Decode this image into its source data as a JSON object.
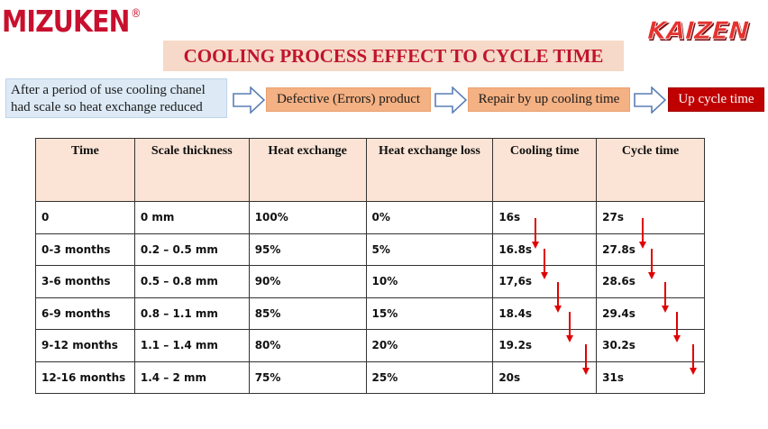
{
  "logo": {
    "brand": "MIZUKEN",
    "registered": "®",
    "kaizen_text": "KAIZEN"
  },
  "title": "COOLING PROCESS EFFECT TO CYCLE TIME",
  "flow": {
    "start": "After a period of use cooling chanel had scale so heat exchange reduced",
    "steps": [
      "Defective (Errors) product",
      "Repair by up cooling time",
      "Up cycle time"
    ]
  },
  "table": {
    "headers": [
      "Time",
      "Scale thickness",
      "Heat exchange",
      "Heat exchange loss",
      "Cooling time",
      "Cycle time"
    ],
    "rows": [
      [
        "0",
        "0 mm",
        "100%",
        "0%",
        "16s",
        "27s"
      ],
      [
        "0-3 months",
        "0.2 – 0.5 mm",
        "95%",
        "5%",
        "16.8s",
        "27.8s"
      ],
      [
        "3-6 months",
        "0.5 – 0.8 mm",
        "90%",
        "10%",
        "17,6s",
        "28.6s"
      ],
      [
        "6-9 months",
        "0.8 – 1.1 mm",
        "85%",
        "15%",
        "18.4s",
        "29.4s"
      ],
      [
        "9-12 months",
        "1.1 – 1.4 mm",
        "80%",
        "20%",
        "19.2s",
        "30.2s"
      ],
      [
        "12-16 months",
        "1.4 – 2 mm",
        "75%",
        "25%",
        "20s",
        "31s"
      ]
    ]
  },
  "colors": {
    "accent_red": "#c00000",
    "title_bg": "#f6d9c8",
    "step_bg": "#f4b183",
    "header_bg": "#fbe4d5",
    "start_bg": "#ddeaf6"
  },
  "icons": {
    "flow_arrow": "right-arrow-icon",
    "trend_arrow": "down-arrow-icon"
  }
}
